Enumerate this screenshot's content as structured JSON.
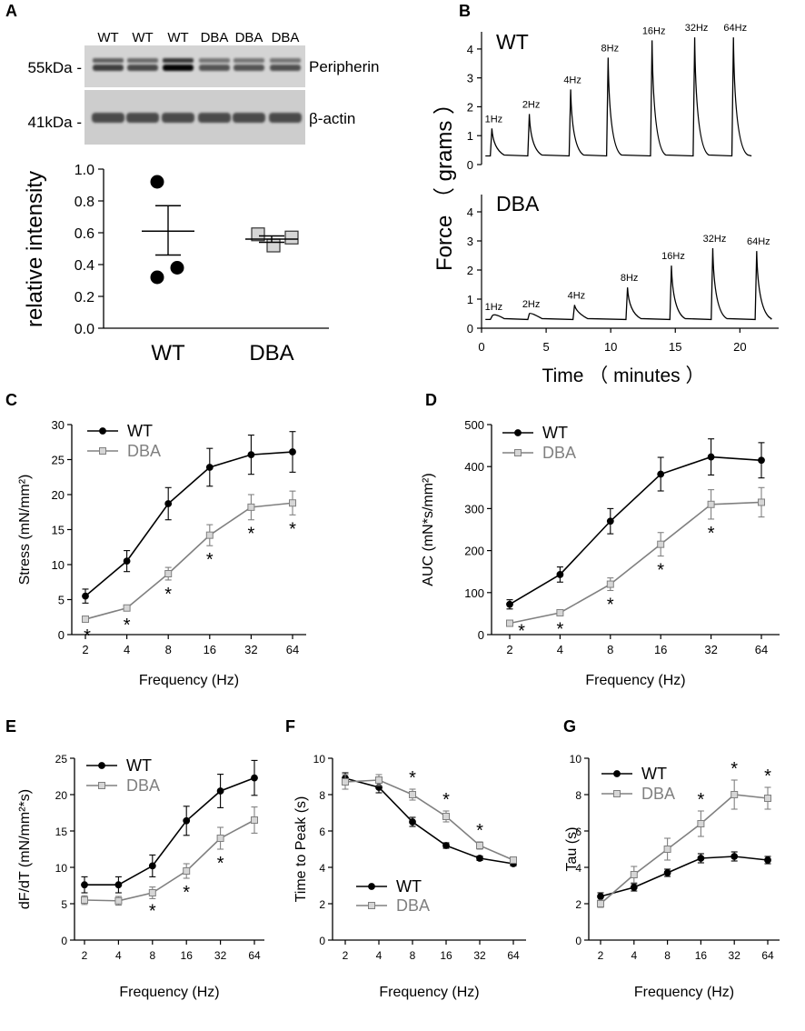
{
  "chart_data": [
    {
      "panel": "A",
      "type": "western_blot_and_scatter",
      "blot": {
        "lanes": [
          "WT",
          "WT",
          "WT",
          "DBA",
          "DBA",
          "DBA"
        ],
        "bands": [
          {
            "marker": "55kDa -",
            "name": "Peripherin"
          },
          {
            "marker": "41kDa -",
            "name": "β-actin"
          }
        ]
      },
      "scatter": {
        "type": "scatter",
        "ylabel": "relative intensity",
        "categories": [
          "WT",
          "DBA"
        ],
        "ylim": [
          0.0,
          1.0
        ],
        "yticks": [
          "0.0",
          "0.2",
          "0.4",
          "0.6",
          "0.8",
          "1.0"
        ],
        "groups": [
          {
            "name": "WT",
            "points": [
              0.92,
              0.38,
              0.32
            ],
            "mean": 0.61,
            "sem_low": 0.46,
            "sem_high": 0.77
          },
          {
            "name": "DBA",
            "points": [
              0.59,
              0.57,
              0.52
            ],
            "mean": 0.56,
            "sem_low": 0.54,
            "sem_high": 0.58
          }
        ]
      }
    },
    {
      "panel": "B",
      "type": "line",
      "ylabel": "Force （ grams ）",
      "xlabel": "Time （ minutes ）",
      "xlim": [
        0,
        23
      ],
      "xticks": [
        "0",
        "5",
        "10",
        "15",
        "20"
      ],
      "traces": [
        {
          "name": "WT",
          "ylim": [
            0,
            4.5
          ],
          "yticks": [
            "0",
            "1",
            "2",
            "3",
            "4"
          ],
          "baseline": 0.3,
          "peaks": [
            {
              "t": 0.8,
              "force": 1.25,
              "label": "1Hz"
            },
            {
              "t": 3.7,
              "force": 1.75,
              "label": "2Hz"
            },
            {
              "t": 6.9,
              "force": 2.6,
              "label": "4Hz"
            },
            {
              "t": 9.8,
              "force": 3.7,
              "label": "8Hz"
            },
            {
              "t": 13.2,
              "force": 4.3,
              "label": "16Hz"
            },
            {
              "t": 16.5,
              "force": 4.4,
              "label": "32Hz"
            },
            {
              "t": 19.5,
              "force": 4.4,
              "label": "64Hz"
            }
          ],
          "end_t": 20.9
        },
        {
          "name": "DBA",
          "ylim": [
            0,
            4.5
          ],
          "yticks": [
            "0",
            "1",
            "2",
            "3",
            "4"
          ],
          "baseline": 0.3,
          "peaks": [
            {
              "t": 0.8,
              "force": 0.4,
              "label": "1Hz"
            },
            {
              "t": 3.7,
              "force": 0.5,
              "label": "2Hz"
            },
            {
              "t": 7.2,
              "force": 0.8,
              "label": "4Hz"
            },
            {
              "t": 11.3,
              "force": 1.4,
              "label": "8Hz"
            },
            {
              "t": 14.7,
              "force": 2.15,
              "label": "16Hz"
            },
            {
              "t": 17.9,
              "force": 2.75,
              "label": "32Hz"
            },
            {
              "t": 21.3,
              "force": 2.65,
              "label": "64Hz"
            }
          ],
          "end_t": 22.4
        }
      ]
    },
    {
      "panel": "C",
      "type": "line",
      "xlabel": "Frequency (Hz)",
      "ylabel": "Stress (mN/mm²)",
      "categories": [
        "2",
        "4",
        "8",
        "16",
        "32",
        "64"
      ],
      "ylim": [
        0,
        30
      ],
      "yticks": [
        "0",
        "5",
        "10",
        "15",
        "20",
        "25",
        "30"
      ],
      "legend": "top-left",
      "series": [
        {
          "name": "WT",
          "values": [
            5.5,
            10.5,
            18.7,
            23.9,
            25.7,
            26.1
          ],
          "errors": [
            1.0,
            1.5,
            2.3,
            2.7,
            2.8,
            2.9
          ]
        },
        {
          "name": "DBA",
          "values": [
            2.2,
            3.8,
            8.7,
            14.2,
            18.2,
            18.8
          ],
          "errors": [
            0.4,
            0.4,
            0.9,
            1.5,
            1.8,
            1.7
          ]
        }
      ],
      "significance": [
        "*",
        "*",
        "*",
        "*",
        "*",
        "*"
      ]
    },
    {
      "panel": "D",
      "type": "line",
      "xlabel": "Frequency (Hz)",
      "ylabel": "AUC (mN*s/mm²)",
      "categories": [
        "2",
        "4",
        "8",
        "16",
        "32",
        "64"
      ],
      "ylim": [
        0,
        500
      ],
      "yticks": [
        "0",
        "100",
        "200",
        "300",
        "400",
        "500"
      ],
      "legend": "top-left",
      "series": [
        {
          "name": "WT",
          "values": [
            72,
            143,
            270,
            382,
            423,
            415
          ],
          "errors": [
            11,
            18,
            30,
            40,
            43,
            42
          ]
        },
        {
          "name": "DBA",
          "values": [
            27,
            52,
            120,
            215,
            310,
            315
          ],
          "errors": [
            4,
            5,
            15,
            28,
            35,
            35
          ]
        }
      ],
      "significance": [
        "*",
        "*",
        "*",
        "*",
        "*",
        ""
      ]
    },
    {
      "panel": "E",
      "type": "line",
      "xlabel": "Frequency (Hz)",
      "ylabel": "dF/dT (mN/mm²*s)",
      "categories": [
        "2",
        "4",
        "8",
        "16",
        "32",
        "64"
      ],
      "ylim": [
        0,
        25
      ],
      "yticks": [
        "0",
        "5",
        "10",
        "15",
        "20",
        "25"
      ],
      "legend": "top-left",
      "series": [
        {
          "name": "WT",
          "values": [
            7.6,
            7.6,
            10.2,
            16.4,
            20.5,
            22.3
          ],
          "errors": [
            1.1,
            1.1,
            1.5,
            2.0,
            2.3,
            2.4
          ]
        },
        {
          "name": "DBA",
          "values": [
            5.5,
            5.4,
            6.5,
            9.5,
            14.0,
            16.5
          ],
          "errors": [
            0.6,
            0.6,
            0.8,
            1.0,
            1.5,
            1.8
          ]
        }
      ],
      "significance": [
        "",
        "",
        "*",
        "*",
        "*",
        ""
      ]
    },
    {
      "panel": "F",
      "type": "line",
      "xlabel": "Frequency (Hz)",
      "ylabel": "Time to Peak (s)",
      "categories": [
        "2",
        "4",
        "8",
        "16",
        "32",
        "64"
      ],
      "ylim": [
        0,
        10
      ],
      "yticks": [
        "0",
        "2",
        "4",
        "6",
        "8",
        "10"
      ],
      "legend": "bottom-left",
      "series": [
        {
          "name": "WT",
          "values": [
            8.9,
            8.4,
            6.5,
            5.2,
            4.5,
            4.2
          ],
          "errors": [
            0.3,
            0.3,
            0.25,
            0.15,
            0.12,
            0.12
          ]
        },
        {
          "name": "DBA",
          "values": [
            8.7,
            8.8,
            8.0,
            6.8,
            5.2,
            4.4
          ],
          "errors": [
            0.4,
            0.3,
            0.3,
            0.3,
            0.2,
            0.15
          ]
        }
      ],
      "significance": [
        "",
        "",
        "*",
        "*",
        "*",
        ""
      ]
    },
    {
      "panel": "G",
      "type": "line",
      "xlabel": "Frequency (Hz)",
      "ylabel": "Tau (s)",
      "categories": [
        "2",
        "4",
        "8",
        "16",
        "32",
        "64"
      ],
      "ylim": [
        0,
        10
      ],
      "yticks": [
        "0",
        "2",
        "4",
        "6",
        "8",
        "10"
      ],
      "legend": "top-left",
      "series": [
        {
          "name": "WT",
          "values": [
            2.4,
            2.9,
            3.7,
            4.5,
            4.6,
            4.4
          ],
          "errors": [
            0.2,
            0.2,
            0.2,
            0.25,
            0.25,
            0.2
          ]
        },
        {
          "name": "DBA",
          "values": [
            2.0,
            3.6,
            5.0,
            6.4,
            8.0,
            7.8
          ],
          "errors": [
            0.2,
            0.45,
            0.6,
            0.7,
            0.8,
            0.6
          ]
        }
      ],
      "significance": [
        "",
        "",
        "",
        "*",
        "*",
        "*"
      ]
    }
  ],
  "colors": {
    "wt": "#000000",
    "dba": "#808080",
    "dba_fill": "#d6d6d6",
    "blot_bg": "#d4d4d4"
  }
}
